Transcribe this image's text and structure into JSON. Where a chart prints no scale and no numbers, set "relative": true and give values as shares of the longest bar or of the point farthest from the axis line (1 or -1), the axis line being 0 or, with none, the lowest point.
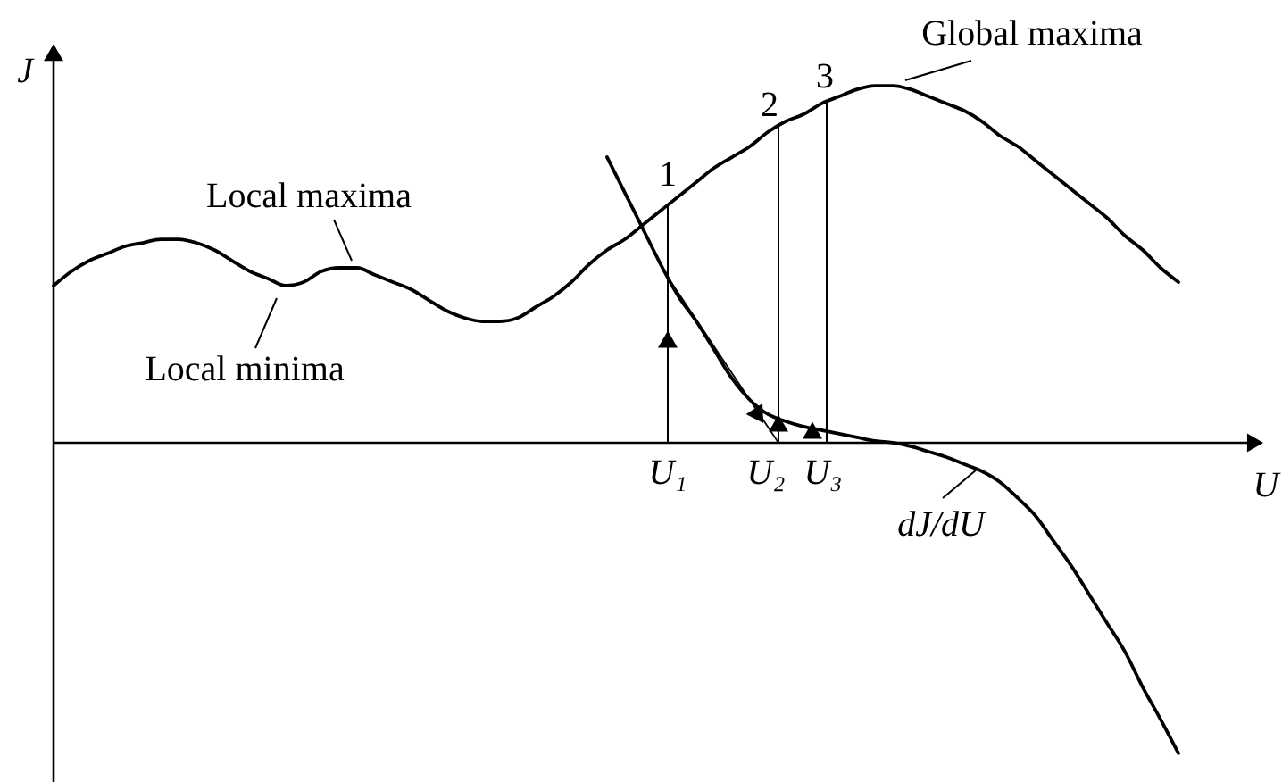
{
  "chart_data": {
    "type": "line",
    "relative": true,
    "xlabel": "U",
    "ylabel": "J",
    "categories": [
      null,
      null,
      null,
      null,
      null,
      null,
      null,
      null,
      null,
      null,
      null,
      null,
      null,
      null,
      null,
      null,
      null,
      null,
      null,
      null,
      null,
      null,
      null,
      null,
      null,
      null,
      null,
      null,
      null,
      null,
      null,
      null,
      null,
      null,
      null,
      null,
      null,
      null,
      null,
      null,
      null,
      null,
      null,
      null,
      null,
      null,
      null,
      null,
      null,
      null,
      null,
      null,
      null,
      null,
      null,
      null,
      null,
      null,
      null,
      null,
      null,
      null,
      null,
      null
    ],
    "series": [
      {
        "color": "#000000",
        "values": [
          0.44,
          0.48,
          0.51,
          0.53,
          0.55,
          0.56,
          0.57,
          0.57,
          0.56,
          0.54,
          0.51,
          0.48,
          0.46,
          0.44,
          0.45,
          0.48,
          0.49,
          0.49,
          0.47,
          0.45,
          0.43,
          0.4,
          0.37,
          0.35,
          0.34,
          0.34,
          0.35,
          0.38,
          0.41,
          0.45,
          0.5,
          0.54,
          0.57,
          0.61,
          0.65,
          0.69,
          0.73,
          0.77,
          0.8,
          0.83,
          0.87,
          0.9,
          0.92,
          0.95,
          0.97,
          0.99,
          1.0,
          1.0,
          0.99,
          0.97,
          0.95,
          0.93,
          0.9,
          0.86,
          0.83,
          0.79,
          0.75,
          0.71,
          0.67,
          0.63,
          0.58,
          0.54,
          0.49,
          0.45
        ]
      },
      {
        "name": "dJ/dU",
        "color": "#000000",
        "values": [
          null,
          null,
          null,
          null,
          null,
          null,
          null,
          null,
          null,
          null,
          null,
          null,
          null,
          null,
          null,
          null,
          null,
          null,
          null,
          null,
          null,
          null,
          null,
          null,
          null,
          null,
          null,
          null,
          null,
          null,
          null,
          0.8,
          0.7,
          0.6,
          0.5,
          0.41,
          0.34,
          0.26,
          0.18,
          0.12,
          0.08,
          0.06,
          0.045,
          0.035,
          0.025,
          0.015,
          0.005,
          0,
          -0.01,
          -0.025,
          -0.04,
          -0.06,
          -0.08,
          -0.11,
          -0.155,
          -0.205,
          -0.275,
          -0.345,
          -0.425,
          -0.505,
          -0.585,
          -0.685,
          -0.775,
          -0.87
        ]
      }
    ],
    "annotations": [
      "Local maxima",
      "Local minima",
      "Global maxima",
      "1",
      "2",
      "3",
      "U₁",
      "U₂",
      "U₃"
    ]
  }
}
